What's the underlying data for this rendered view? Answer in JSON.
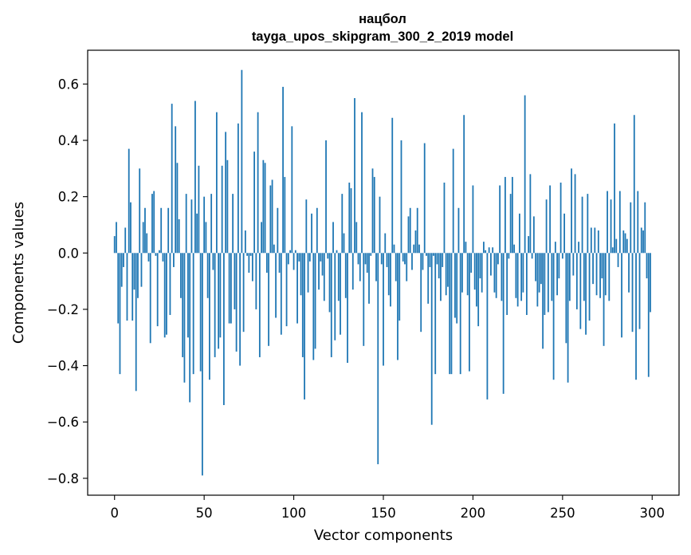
{
  "chart_data": {
    "type": "bar",
    "title": "нацбол",
    "subtitle": "tayga_upos_skipgram_300_2_2019 model",
    "xlabel": "Vector components",
    "ylabel": "Components values",
    "xlim": [
      -15,
      315
    ],
    "ylim": [
      -0.86,
      0.72
    ],
    "xticks": [
      0,
      50,
      100,
      150,
      200,
      250,
      300
    ],
    "yticks": [
      -0.8,
      -0.6,
      -0.4,
      -0.2,
      0.0,
      0.2,
      0.4,
      0.6
    ],
    "ytick_labels": [
      "−0.8",
      "−0.6",
      "−0.4",
      "−0.2",
      "0.0",
      "0.2",
      "0.4",
      "0.6"
    ],
    "bar_color": "#1f77b4",
    "grid": false,
    "values": [
      0.06,
      0.11,
      -0.25,
      -0.43,
      -0.12,
      -0.05,
      0.09,
      -0.24,
      0.37,
      0.18,
      -0.24,
      -0.13,
      -0.49,
      -0.16,
      0.3,
      -0.12,
      0.11,
      0.16,
      0.07,
      -0.03,
      -0.32,
      0.21,
      0.22,
      -0.01,
      -0.26,
      0.01,
      0.16,
      -0.03,
      -0.3,
      -0.29,
      0.16,
      -0.22,
      0.53,
      -0.05,
      0.45,
      0.32,
      0.12,
      -0.16,
      -0.37,
      -0.46,
      0.21,
      -0.3,
      -0.53,
      0.19,
      -0.43,
      0.54,
      0.14,
      0.31,
      -0.42,
      -0.79,
      0.2,
      0.11,
      -0.16,
      -0.45,
      0.21,
      -0.06,
      -0.37,
      0.5,
      -0.34,
      -0.3,
      0.31,
      -0.54,
      0.43,
      0.33,
      -0.25,
      -0.25,
      0.21,
      -0.2,
      -0.35,
      0.46,
      -0.4,
      0.65,
      -0.28,
      0.08,
      -0.01,
      -0.07,
      -0.01,
      -0.1,
      0.36,
      -0.2,
      0.5,
      -0.37,
      0.11,
      0.33,
      0.32,
      -0.07,
      -0.33,
      0.24,
      0.26,
      0.03,
      -0.23,
      0.16,
      -0.07,
      -0.29,
      0.59,
      0.27,
      -0.26,
      -0.04,
      0.01,
      0.45,
      -0.06,
      0.01,
      -0.25,
      -0.03,
      -0.15,
      -0.37,
      -0.52,
      0.19,
      -0.14,
      -0.03,
      0.14,
      -0.38,
      -0.34,
      0.16,
      -0.13,
      -0.03,
      -0.08,
      -0.17,
      0.4,
      -0.02,
      -0.21,
      -0.37,
      0.11,
      -0.31,
      0.01,
      -0.17,
      -0.29,
      0.21,
      0.07,
      -0.16,
      -0.39,
      0.25,
      0.23,
      -0.13,
      0.55,
      0.11,
      -0.04,
      -0.1,
      0.5,
      -0.33,
      -0.04,
      -0.07,
      -0.18,
      -0.01,
      0.3,
      0.27,
      -0.1,
      -0.75,
      0.2,
      -0.04,
      -0.4,
      0.07,
      -0.05,
      -0.15,
      -0.19,
      0.48,
      0.03,
      -0.1,
      -0.38,
      -0.24,
      0.4,
      -0.03,
      -0.04,
      -0.1,
      0.13,
      0.16,
      -0.06,
      0.03,
      0.08,
      0.16,
      0.03,
      -0.28,
      -0.06,
      0.39,
      -0.01,
      -0.18,
      -0.05,
      -0.61,
      -0.01,
      -0.43,
      -0.04,
      -0.09,
      -0.17,
      -0.05,
      0.25,
      -0.15,
      -0.12,
      -0.43,
      -0.43,
      0.37,
      -0.23,
      -0.25,
      0.16,
      -0.43,
      -0.14,
      0.49,
      0.04,
      -0.15,
      -0.42,
      -0.07,
      0.24,
      -0.13,
      -0.19,
      -0.26,
      -0.09,
      -0.14,
      0.04,
      0.01,
      -0.52,
      0.02,
      -0.08,
      0.02,
      -0.14,
      -0.16,
      -0.04,
      0.24,
      -0.17,
      -0.5,
      0.27,
      -0.22,
      -0.02,
      0.21,
      0.27,
      0.03,
      -0.16,
      -0.19,
      0.14,
      -0.17,
      -0.14,
      0.56,
      -0.22,
      0.06,
      0.28,
      -0.02,
      0.13,
      -0.1,
      -0.19,
      -0.14,
      -0.11,
      -0.34,
      -0.22,
      0.19,
      -0.21,
      0.24,
      -0.17,
      -0.45,
      0.04,
      -0.15,
      -0.09,
      0.25,
      -0.02,
      0.14,
      -0.32,
      -0.46,
      -0.17,
      0.3,
      -0.08,
      0.28,
      -0.2,
      0.04,
      -0.27,
      0.2,
      -0.17,
      -0.29,
      0.21,
      -0.24,
      0.09,
      -0.11,
      0.09,
      -0.15,
      0.08,
      -0.16,
      -0.09,
      -0.33,
      -0.15,
      0.22,
      -0.17,
      0.19,
      0.02,
      0.46,
      0.05,
      -0.05,
      0.22,
      -0.3,
      0.08,
      0.07,
      0.05,
      -0.14,
      0.18,
      -0.28,
      0.49,
      -0.45,
      0.22,
      -0.27,
      0.09,
      0.08,
      0.18,
      -0.09,
      -0.44,
      -0.21
    ]
  }
}
